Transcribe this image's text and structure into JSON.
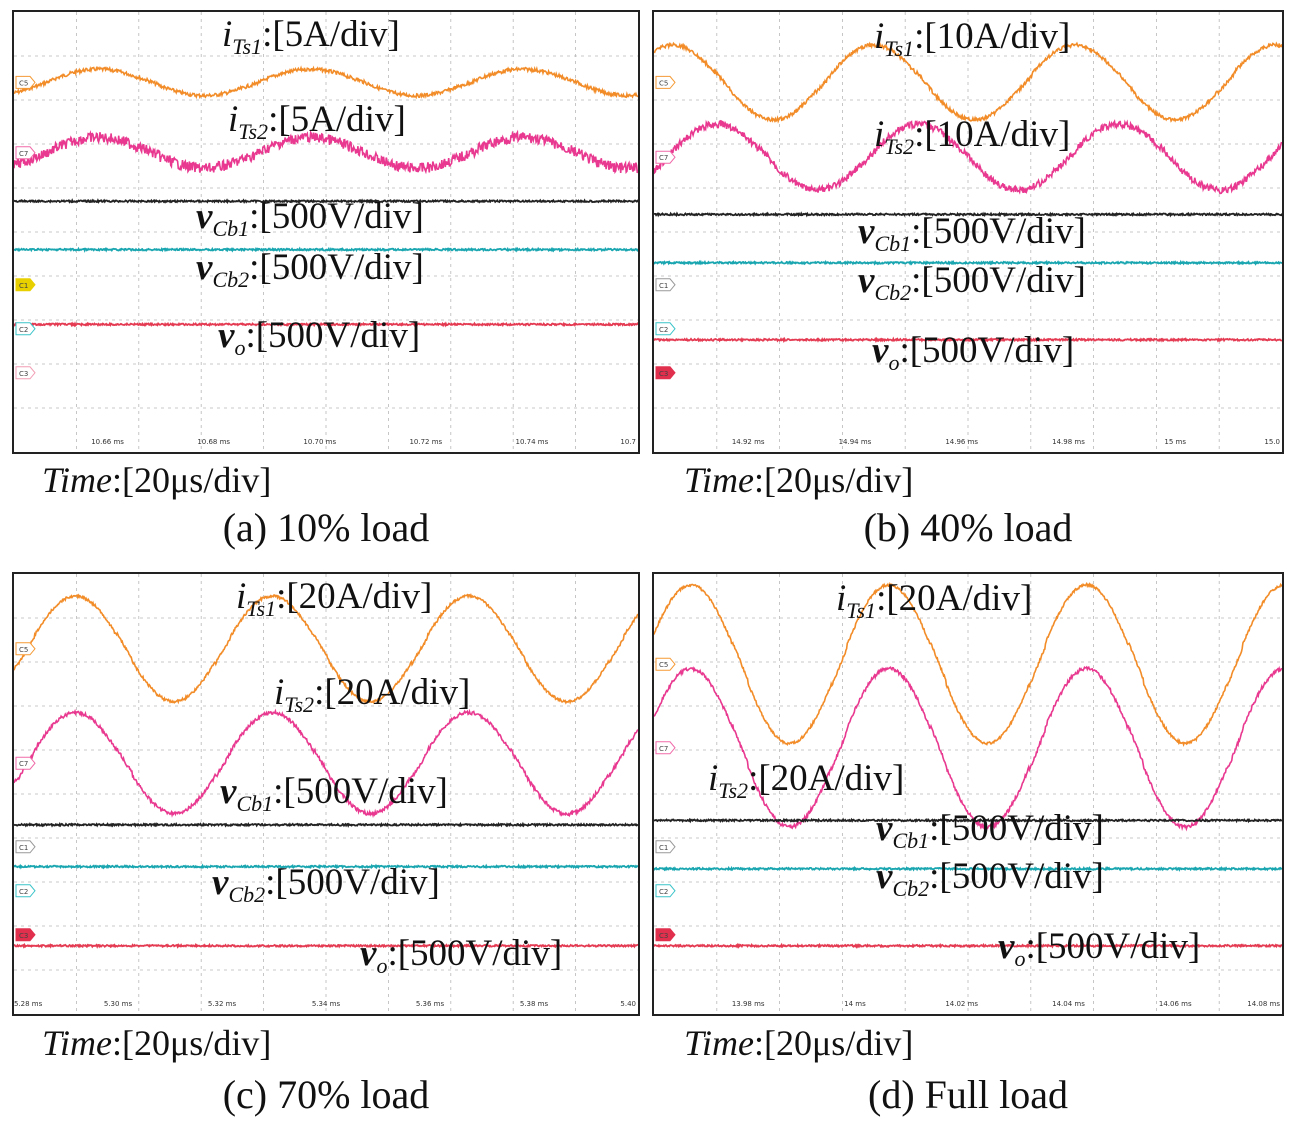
{
  "chart_data": [
    {
      "type": "line",
      "id": "a",
      "caption": "(a) 10% load",
      "time_label": {
        "name": "Time",
        "value": ":[20μs/div]"
      },
      "tick_labels": [
        "10.66 ms",
        "10.68 ms",
        "10.70 ms",
        "10.72 ms",
        "10.74 ms",
        "10.7"
      ],
      "channel_markers": [
        {
          "label": "C5",
          "color": "#f59a35"
        },
        {
          "label": "C7",
          "color": "#f06aa8"
        },
        {
          "label": "C1",
          "color": "#e8d000"
        },
        {
          "label": "C2",
          "color": "#3ac3c8"
        },
        {
          "label": "C3",
          "color": "#f29db5"
        }
      ],
      "series": [
        {
          "name": "i_Ts1",
          "sym": "i",
          "sub": "Ts1",
          "scale": ":[5A/div]",
          "color": "#f28c28",
          "kind": "sine",
          "level": 0.16,
          "amp": 0.03,
          "period": 0.34,
          "phase": 0.05,
          "noise": 0.004
        },
        {
          "name": "i_Ts2",
          "sym": "i",
          "sub": "Ts2",
          "scale": ":[5A/div]",
          "color": "#e8388f",
          "kind": "sine",
          "level": 0.32,
          "amp": 0.035,
          "period": 0.34,
          "phase": 0.05,
          "noise": 0.012
        },
        {
          "name": "v_Cb1",
          "sym": "v",
          "sub": "Cb1",
          "scale": ":[500V/div]",
          "color": "#222222",
          "kind": "flat",
          "level": 0.43
        },
        {
          "name": "v_Cb2",
          "sym": "v",
          "sub": "Cb2",
          "scale": ":[500V/div]",
          "color": "#1aa6b0",
          "kind": "flat",
          "level": 0.54
        },
        {
          "name": "v_o",
          "sym": "v",
          "sub": "o",
          "scale": ":[500V/div]",
          "color": "#e43a52",
          "kind": "flat",
          "level": 0.71
        }
      ]
    },
    {
      "type": "line",
      "id": "b",
      "caption": "(b) 40% load",
      "time_label": {
        "name": "Time",
        "value": ":[20μs/div]"
      },
      "tick_labels": [
        "14.92 ms",
        "14.94 ms",
        "14.96 ms",
        "14.98 ms",
        "15 ms",
        "15.0"
      ],
      "channel_markers": [
        {
          "label": "C5",
          "color": "#f59a35"
        },
        {
          "label": "C7",
          "color": "#f06aa8"
        },
        {
          "label": "C1",
          "color": "#999999"
        },
        {
          "label": "C2",
          "color": "#3ac3c8"
        },
        {
          "label": "C3",
          "color": "#e0304e"
        }
      ],
      "series": [
        {
          "name": "i_Ts1",
          "sym": "i",
          "sub": "Ts1",
          "scale": ":[10A/div]",
          "color": "#f28c28",
          "kind": "sine",
          "level": 0.16,
          "amp": 0.085,
          "period": 0.32,
          "phase": -0.05,
          "noise": 0.004
        },
        {
          "name": "i_Ts2",
          "sym": "i",
          "sub": "Ts2",
          "scale": ":[10A/div]",
          "color": "#e8388f",
          "kind": "sine",
          "level": 0.33,
          "amp": 0.075,
          "period": 0.32,
          "phase": 0.02,
          "noise": 0.008
        },
        {
          "name": "v_Cb1",
          "sym": "v",
          "sub": "Cb1",
          "scale": ":[500V/div]",
          "color": "#222222",
          "kind": "flat",
          "level": 0.46
        },
        {
          "name": "v_Cb2",
          "sym": "v",
          "sub": "Cb2",
          "scale": ":[500V/div]",
          "color": "#1aa6b0",
          "kind": "flat",
          "level": 0.57
        },
        {
          "name": "v_o",
          "sym": "v",
          "sub": "o",
          "scale": ":[500V/div]",
          "color": "#e43a52",
          "kind": "flat",
          "level": 0.745
        }
      ]
    },
    {
      "type": "line",
      "id": "c",
      "caption": "(c) 70% load",
      "time_label": {
        "name": "Time",
        "value": ":[20μs/div]"
      },
      "tick_labels": [
        "5.28 ms",
        "5.30 ms",
        "5.32 ms",
        "5.34 ms",
        "5.36 ms",
        "5.38 ms",
        "5.40"
      ],
      "channel_markers": [
        {
          "label": "C5",
          "color": "#f59a35"
        },
        {
          "label": "C7",
          "color": "#f06aa8"
        },
        {
          "label": "C1",
          "color": "#999999"
        },
        {
          "label": "C2",
          "color": "#3ac3c8"
        },
        {
          "label": "C3",
          "color": "#e0304e"
        }
      ],
      "series": [
        {
          "name": "i_Ts1",
          "sym": "i",
          "sub": "Ts1",
          "scale": ":[20A/div]",
          "color": "#f28c28",
          "kind": "sine",
          "level": 0.17,
          "amp": 0.12,
          "period": 0.315,
          "phase": 0.02,
          "noise": 0.003
        },
        {
          "name": "i_Ts2",
          "sym": "i",
          "sub": "Ts2",
          "scale": ":[20A/div]",
          "color": "#e8388f",
          "kind": "sine",
          "level": 0.43,
          "amp": 0.115,
          "period": 0.315,
          "phase": 0.02,
          "noise": 0.004
        },
        {
          "name": "v_Cb1",
          "sym": "v",
          "sub": "Cb1",
          "scale": ":[500V/div]",
          "color": "#222222",
          "kind": "flat",
          "level": 0.57
        },
        {
          "name": "v_Cb2",
          "sym": "v",
          "sub": "Cb2",
          "scale": ":[500V/div]",
          "color": "#1aa6b0",
          "kind": "flat",
          "level": 0.665
        },
        {
          "name": "v_o",
          "sym": "v",
          "sub": "o",
          "scale": ":[500V/div]",
          "color": "#e43a52",
          "kind": "flat",
          "level": 0.845
        }
      ]
    },
    {
      "type": "line",
      "id": "d",
      "caption": "(d) Full load",
      "time_label": {
        "name": "Time",
        "value": ":[20μs/div]"
      },
      "tick_labels": [
        "13.98 ms",
        "14 ms",
        "14.02 ms",
        "14.04 ms",
        "14.06 ms",
        "14.08 ms"
      ],
      "channel_markers": [
        {
          "label": "C5",
          "color": "#f59a35"
        },
        {
          "label": "C7",
          "color": "#f06aa8"
        },
        {
          "label": "C1",
          "color": "#999999"
        },
        {
          "label": "C2",
          "color": "#3ac3c8"
        },
        {
          "label": "C3",
          "color": "#e0304e"
        }
      ],
      "series": [
        {
          "name": "i_Ts1",
          "sym": "i",
          "sub": "Ts1",
          "scale": ":[20A/div]",
          "color": "#f28c28",
          "kind": "sine",
          "level": 0.205,
          "amp": 0.18,
          "period": 0.315,
          "phase": -0.02,
          "noise": 0.003
        },
        {
          "name": "i_Ts2",
          "sym": "i",
          "sub": "Ts2",
          "scale": ":[20A/div]",
          "color": "#e8388f",
          "kind": "sine",
          "level": 0.395,
          "amp": 0.18,
          "period": 0.315,
          "phase": -0.02,
          "noise": 0.004
        },
        {
          "name": "v_Cb1",
          "sym": "v",
          "sub": "Cb1",
          "scale": ":[500V/div]",
          "color": "#222222",
          "kind": "flat",
          "level": 0.56
        },
        {
          "name": "v_Cb2",
          "sym": "v",
          "sub": "Cb2",
          "scale": ":[500V/div]",
          "color": "#1aa6b0",
          "kind": "flat",
          "level": 0.67
        },
        {
          "name": "v_o",
          "sym": "v",
          "sub": "o",
          "scale": ":[500V/div]",
          "color": "#e43a52",
          "kind": "flat",
          "level": 0.845
        }
      ]
    }
  ]
}
